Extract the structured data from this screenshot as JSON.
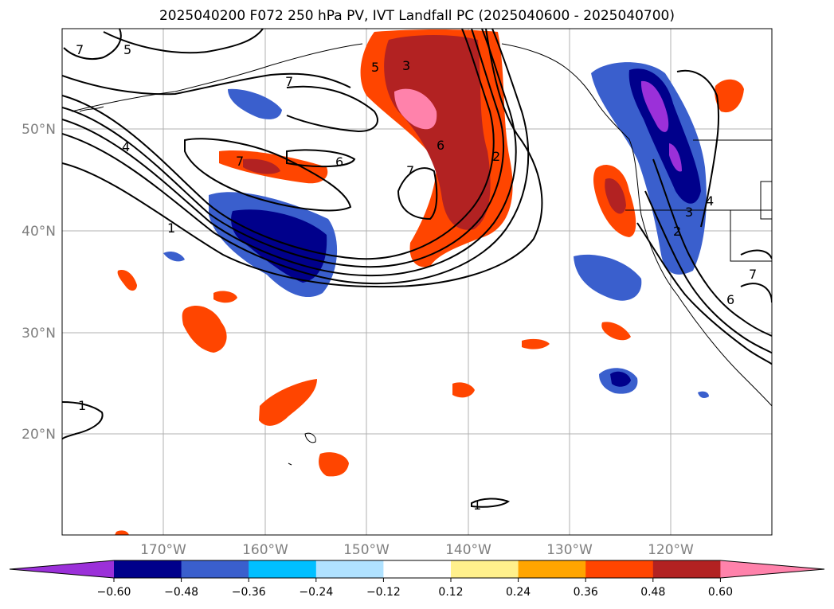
{
  "title": "2025040200 F072 250 hPa PV, IVT Landfall PC (2025040600 - 2025040700)",
  "map": {
    "lat_labels": [
      "50°N",
      "40°N",
      "30°N",
      "20°N"
    ],
    "lon_labels": [
      "170°W",
      "160°W",
      "150°W",
      "140°W",
      "130°W",
      "120°W"
    ],
    "contour_labels": [
      "7",
      "5",
      "7",
      "4",
      "1",
      "7",
      "6",
      "5",
      "3",
      "6",
      "7",
      "2",
      "4",
      "3",
      "2",
      "7",
      "6",
      "1",
      "1"
    ]
  },
  "colorbar": {
    "colors": [
      "#9b30d9",
      "#00008b",
      "#3a5fcd",
      "#00bfff",
      "#b0e2ff",
      "#ffffff",
      "#fff08c",
      "#ffa500",
      "#ff4500",
      "#b22222",
      "#ff82ab"
    ],
    "tick_labels": [
      "−0.60",
      "−0.48",
      "−0.36",
      "−0.24",
      "−0.12",
      "0.12",
      "0.24",
      "0.36",
      "0.48",
      "0.60"
    ]
  }
}
